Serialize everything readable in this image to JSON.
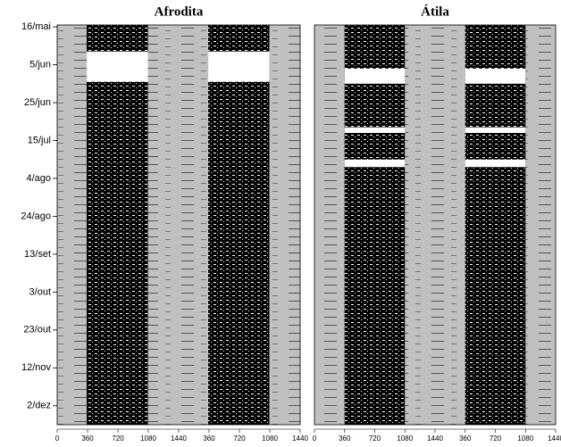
{
  "chart_data": [
    {
      "type": "actogram",
      "title": "Afrodita",
      "xlim": [
        0,
        2880
      ],
      "xticks": [
        0,
        360,
        720,
        1080,
        1440,
        {
          "value": 1800,
          "label": "360"
        },
        {
          "value": 2160,
          "label": "720"
        },
        {
          "value": 2520,
          "label": "1080"
        },
        {
          "value": 2880,
          "label": "1440"
        }
      ],
      "ylim": [
        -1,
        210
      ],
      "yticks": [
        {
          "value": 0,
          "label": "16/mai"
        },
        {
          "value": 20,
          "label": "5/jun"
        },
        {
          "value": 40,
          "label": "25/jun"
        },
        {
          "value": 60,
          "label": "15/jul"
        },
        {
          "value": 80,
          "label": "4/ago"
        },
        {
          "value": 100,
          "label": "24/ago"
        },
        {
          "value": 120,
          "label": "13/set"
        },
        {
          "value": 140,
          "label": "3/out"
        },
        {
          "value": 160,
          "label": "23/out"
        },
        {
          "value": 180,
          "label": "12/nov"
        },
        {
          "value": 200,
          "label": "2/dez"
        }
      ],
      "active_minutes": [
        350,
        1075
      ],
      "missing_days": [
        [
          13,
          29
        ]
      ]
    },
    {
      "type": "actogram",
      "title": "Átila",
      "xlim": [
        0,
        2880
      ],
      "xticks": [
        0,
        360,
        720,
        1080,
        1440,
        {
          "value": 1800,
          "label": "360"
        },
        {
          "value": 2160,
          "label": "720"
        },
        {
          "value": 2520,
          "label": "1080"
        },
        {
          "value": 2880,
          "label": "1440"
        }
      ],
      "ylim": [
        -1,
        210
      ],
      "active_minutes": [
        360,
        1080
      ],
      "missing_days": [
        [
          22,
          30
        ],
        [
          53,
          56
        ],
        [
          70,
          74
        ]
      ]
    }
  ]
}
